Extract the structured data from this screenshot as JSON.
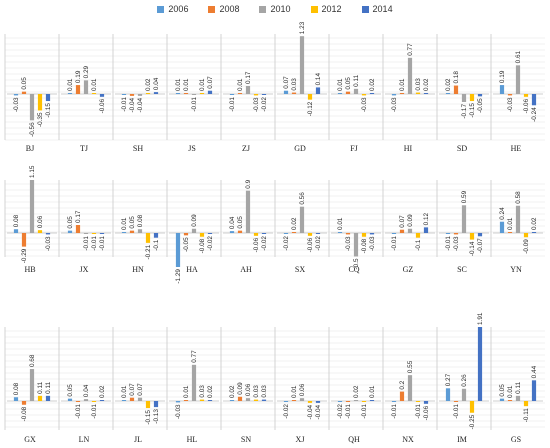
{
  "chart_data": {
    "type": "bar",
    "legend_position": "top-center",
    "series_names": [
      "2006",
      "2008",
      "2010",
      "2012",
      "2014"
    ],
    "colors": [
      "#5b9bd5",
      "#ed7d31",
      "#a5a5a5",
      "#ffc000",
      "#4472c4"
    ],
    "grid": true,
    "panel_ylim": [
      -0.6,
      1.3
    ],
    "panels": [
      {
        "label": "BJ",
        "values": [
          -0.03,
          0.05,
          -0.56,
          -0.35,
          -0.15
        ],
        "labels": [
          "-0.03",
          "0.05",
          "-0.56",
          "-0.35",
          "-0.15"
        ]
      },
      {
        "label": "TJ",
        "values": [
          0.01,
          0.19,
          0.29,
          0.01,
          -0.06
        ],
        "labels": [
          "0.01",
          "0.19",
          "0.29",
          "0.01",
          "-0.06"
        ]
      },
      {
        "label": "SH",
        "values": [
          -0.01,
          -0.04,
          -0.04,
          0.02,
          0.04
        ],
        "labels": [
          "-0.01",
          "-0.04",
          "-0.04",
          "0.02",
          "0.04"
        ]
      },
      {
        "label": "JS",
        "values": [
          0.01,
          0.01,
          -0.01,
          0.01,
          0.07
        ],
        "labels": [
          "0.01",
          "0.01",
          "-0.01",
          "0.01",
          "0.07"
        ]
      },
      {
        "label": "ZJ",
        "values": [
          -0.01,
          0.01,
          0.17,
          -0.03,
          -0.02
        ],
        "labels": [
          "-0.01",
          "0.01",
          "0.17",
          "-0.03",
          "-0.02"
        ]
      },
      {
        "label": "GD",
        "values": [
          0.07,
          0.03,
          1.23,
          -0.12,
          0.14
        ],
        "labels": [
          "0.07",
          "0.03",
          "1.23",
          "-0.12",
          "0.14"
        ]
      },
      {
        "label": "FJ",
        "values": [
          0.01,
          0.05,
          0.11,
          -0.03,
          0.02
        ],
        "labels": [
          "0.01",
          "0.05",
          "0.11",
          "-0.03",
          "0.02"
        ]
      },
      {
        "label": "HI",
        "values": [
          -0.03,
          0.01,
          0.77,
          0.03,
          0.02
        ],
        "labels": [
          "-0.03",
          "0.01",
          "0.77",
          "0.03",
          "0.02"
        ]
      },
      {
        "label": "SD",
        "values": [
          0.02,
          0.18,
          -0.17,
          -0.15,
          -0.05
        ],
        "labels": [
          "0.02",
          "0.18",
          "-0.17",
          "-0.15",
          "-0.05"
        ]
      },
      {
        "label": "HE",
        "values": [
          0.19,
          -0.03,
          0.61,
          -0.06,
          -0.24
        ],
        "labels": [
          "0.19",
          "-0.03",
          "0.61",
          "-0.06",
          "-0.24"
        ]
      },
      {
        "label": "HB",
        "values": [
          0.08,
          -0.29,
          1.15,
          0.06,
          -0.03
        ],
        "labels": [
          "0.08",
          "-0.29",
          "1.15",
          "0.06",
          "-0.03"
        ]
      },
      {
        "label": "JX",
        "values": [
          0.05,
          0.17,
          -0.01,
          -0.01,
          -0.01
        ],
        "labels": [
          "0.05",
          "0.17",
          "-0.01",
          "-0.01",
          "-0.01"
        ]
      },
      {
        "label": "HN",
        "values": [
          0.01,
          0.05,
          0.08,
          -0.21,
          -0.1
        ],
        "labels": [
          "0.01",
          "0.05",
          "0.08",
          "-0.21",
          "-0.1"
        ]
      },
      {
        "label": "HA",
        "values": [
          -1.29,
          -0.05,
          0.09,
          -0.08,
          -0.02
        ],
        "labels": [
          "-1.29",
          "-0.05",
          "0.09",
          "-0.08",
          "-0.02"
        ]
      },
      {
        "label": "AH",
        "values": [
          0.04,
          0.05,
          0.9,
          -0.06,
          -0.02
        ],
        "labels": [
          "0.04",
          "0.05",
          "0.9",
          "-0.06",
          "-0.02"
        ]
      },
      {
        "label": "SX",
        "values": [
          -0.02,
          0.02,
          0.56,
          -0.06,
          -0.02
        ],
        "labels": [
          "-0.02",
          "0.02",
          "0.56",
          "-0.06",
          "-0.02"
        ]
      },
      {
        "label": "CQ",
        "values": [
          0.01,
          -0.03,
          -0.5,
          -0.08,
          -0.03
        ],
        "labels": [
          "0.01",
          "-0.03",
          "-0.5",
          "-0.08",
          "-0.03"
        ]
      },
      {
        "label": "GZ",
        "values": [
          -0.01,
          0.07,
          0.09,
          -0.1,
          0.12
        ],
        "labels": [
          "-0.01",
          "0.07",
          "0.09",
          "-0.1",
          "0.12"
        ]
      },
      {
        "label": "SC",
        "values": [
          -0.01,
          -0.03,
          0.59,
          -0.14,
          -0.07
        ],
        "labels": [
          "-0.01",
          "-0.03",
          "0.59",
          "-0.14",
          "-0.07"
        ]
      },
      {
        "label": "YN",
        "values": [
          0.24,
          0.01,
          0.58,
          -0.09,
          0.02
        ],
        "labels": [
          "0.24",
          "0.01",
          "0.58",
          "-0.09",
          "0.02"
        ]
      },
      {
        "label": "GX",
        "values": [
          0.08,
          -0.08,
          0.68,
          0.11,
          0.11
        ],
        "labels": [
          "0.08",
          "-0.08",
          "0.68",
          "0.11",
          "0.11"
        ]
      },
      {
        "label": "LN",
        "values": [
          0.05,
          -0.01,
          0.04,
          -0.01,
          0.02
        ],
        "labels": [
          "0.05",
          "-0.01",
          "0.04",
          "-0.01",
          "0.02"
        ]
      },
      {
        "label": "JL",
        "values": [
          0.01,
          0.07,
          0.07,
          -0.15,
          -0.13
        ],
        "labels": [
          "0.01",
          "0.07",
          "0.07",
          "-0.15",
          "-0.13"
        ]
      },
      {
        "label": "HL",
        "values": [
          -0.03,
          0.01,
          0.77,
          0.03,
          0.02
        ],
        "labels": [
          "-0.03",
          "0.01",
          "0.77",
          "0.03",
          "0.02"
        ]
      },
      {
        "label": "SN",
        "values": [
          0.02,
          0.09,
          0.06,
          0.03,
          0.03
        ],
        "labels": [
          "0.02",
          "0.09",
          "0.06",
          "0.03",
          "0.03"
        ]
      },
      {
        "label": "XJ",
        "values": [
          -0.02,
          0.01,
          0.06,
          -0.04,
          -0.04
        ],
        "labels": [
          "-0.02",
          "0.01",
          "0.06",
          "-0.04",
          "-0.04"
        ]
      },
      {
        "label": "QH",
        "values": [
          -0.02,
          -0.01,
          0.02,
          -0.01,
          0.01
        ],
        "labels": [
          "-0.02",
          "-0.01",
          "0.02",
          "-0.01",
          "0.01"
        ]
      },
      {
        "label": "NX",
        "values": [
          -0.01,
          0.2,
          0.55,
          -0.01,
          -0.06
        ],
        "labels": [
          "-0.01",
          "0.2",
          "0.55",
          "-0.01",
          "-0.06"
        ]
      },
      {
        "label": "IM",
        "values": [
          0.27,
          -0.01,
          0.26,
          -0.25,
          1.91
        ],
        "labels": [
          "0.27",
          "-0.01",
          "0.26",
          "-0.25",
          "1.91"
        ]
      },
      {
        "label": "GS",
        "values": [
          0.05,
          0.01,
          0.11,
          -0.11,
          0.44
        ],
        "labels": [
          "0.05",
          "0.01",
          "0.11",
          "-0.11",
          "0.44"
        ]
      }
    ]
  }
}
